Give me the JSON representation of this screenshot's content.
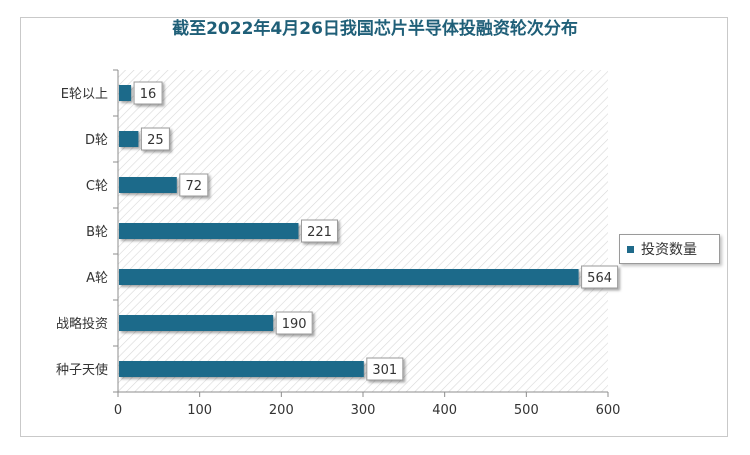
{
  "chart_data": {
    "type": "bar",
    "orientation": "horizontal",
    "title": "截至2022年4月26日我国芯片半导体投融资轮次分布",
    "categories": [
      "E轮以上",
      "D轮",
      "C轮",
      "B轮",
      "A轮",
      "战略投资",
      "种子天使"
    ],
    "series": [
      {
        "name": "投资数量",
        "values": [
          16,
          25,
          72,
          221,
          564,
          190,
          301
        ],
        "color": "#1f6a8a"
      }
    ],
    "x_ticks": [
      "0",
      "100",
      "200",
      "300",
      "400",
      "500",
      "600"
    ],
    "xlim": [
      0,
      600
    ],
    "xlabel": "",
    "ylabel": "",
    "grid": false,
    "background_pattern": "diagonal-hatch",
    "data_labels": true,
    "legend_position": "right"
  }
}
